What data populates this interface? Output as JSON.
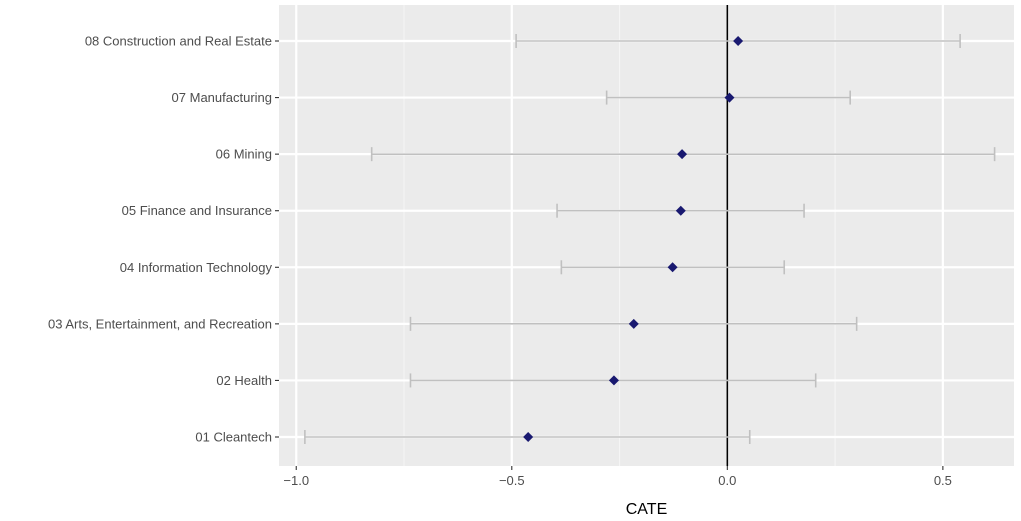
{
  "chart_data": {
    "type": "scatter",
    "title": "",
    "xlabel": "CATE",
    "ylabel": "",
    "xlim": [
      -1.04,
      0.665
    ],
    "x_ticks": [
      -1.0,
      -0.5,
      0.0,
      0.5
    ],
    "x_tick_labels": [
      "−1.0",
      "−0.5",
      "0.0",
      "0.5"
    ],
    "reference_line_x": 0,
    "grid": true,
    "legend": "none",
    "colors": {
      "panel_background": "#ebebeb",
      "grid_major": "#ffffff",
      "grid_minor": "#f5f5f5",
      "errorbar": "#c0c0c0",
      "point": "#191970",
      "reference_line": "#000000"
    },
    "categories": [
      "08 Construction and Real Estate",
      "07 Manufacturing",
      "06 Mining",
      "05 Finance and Insurance",
      "04 Information Technology",
      "03 Arts, Entertainment, and Recreation",
      "02 Health",
      "01 Cleantech"
    ],
    "estimate": [
      0.025,
      0.005,
      -0.105,
      -0.108,
      -0.127,
      -0.217,
      -0.263,
      -0.462
    ],
    "lower": [
      -0.49,
      -0.28,
      -0.825,
      -0.395,
      -0.385,
      -0.735,
      -0.735,
      -0.98
    ],
    "upper": [
      0.54,
      0.285,
      0.62,
      0.178,
      0.132,
      0.3,
      0.205,
      0.052
    ]
  }
}
